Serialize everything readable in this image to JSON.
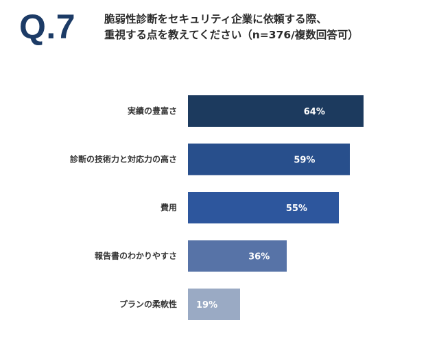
{
  "header": {
    "question_number": "Q.7",
    "question_line1": "脆弱性診断をセキュリティ企業に依頼する際、",
    "question_line2": "重視する点を教えてください（n=376/複数回答可）"
  },
  "chart_data": {
    "type": "bar",
    "orientation": "horizontal",
    "categories": [
      "実績の豊富さ",
      "診断の技術力と対応力の高さ",
      "費用",
      "報告書のわかりやすさ",
      "プランの柔軟性"
    ],
    "values": [
      64,
      59,
      55,
      36,
      19
    ],
    "value_labels": [
      "64%",
      "59%",
      "55%",
      "36%",
      "19%"
    ],
    "unit": "%",
    "xlim": [
      0,
      100
    ],
    "grid": false,
    "legend": "none",
    "colors": [
      "#1c3a5e",
      "#284f8c",
      "#2d569d",
      "#5773a7",
      "#9aaac4"
    ]
  }
}
